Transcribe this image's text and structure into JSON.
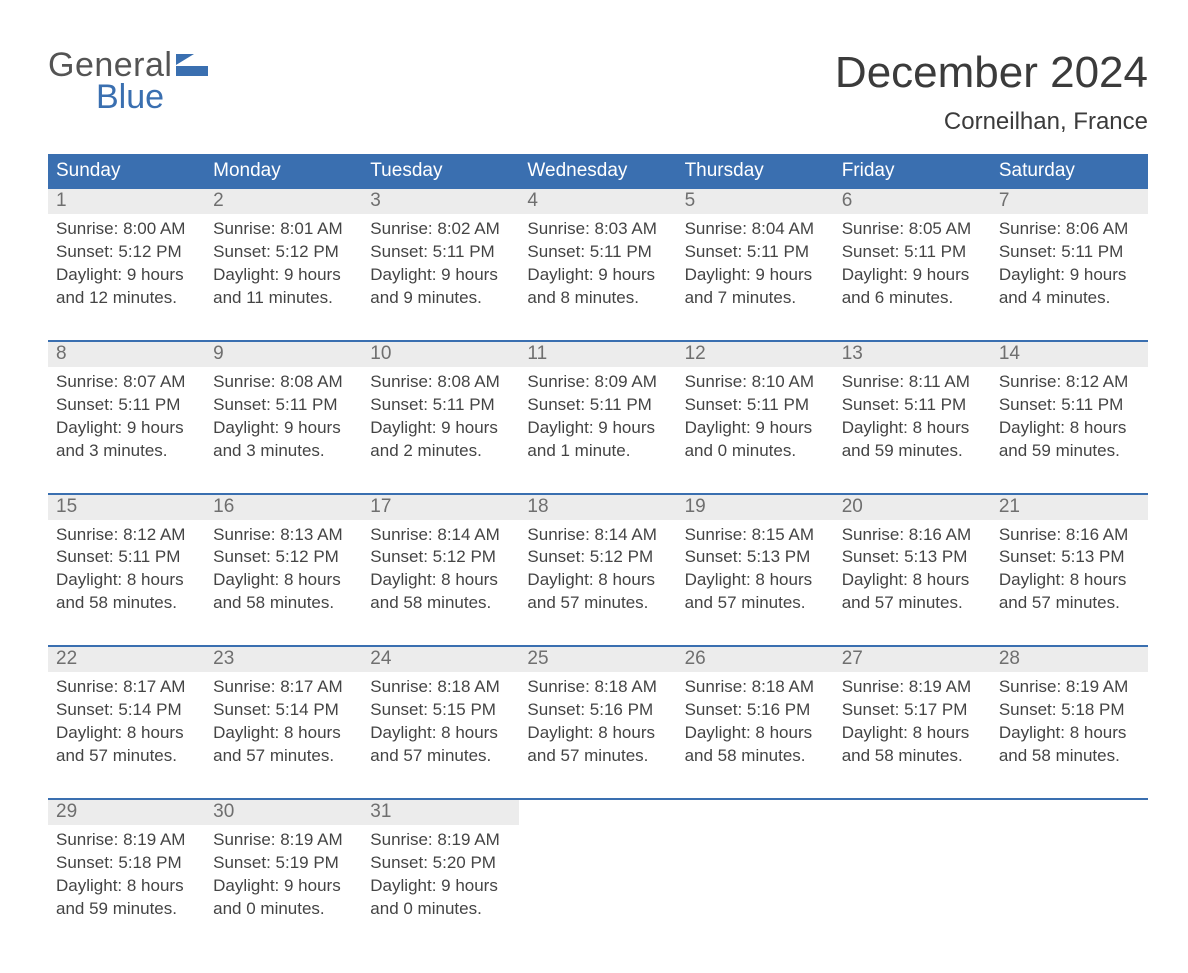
{
  "logo": {
    "text_top": "General",
    "text_bottom": "Blue"
  },
  "colors": {
    "brand_blue": "#3a6fb0",
    "header_row_bg": "#3a6fb0",
    "header_row_text": "#ffffff",
    "daynum_bg": "#ececec",
    "daynum_text": "#6f6f6f",
    "body_text": "#444444",
    "title_text": "#3b3b3b",
    "week_separator": "#3a6fb0",
    "background": "#ffffff",
    "logo_gray": "#545454"
  },
  "typography": {
    "month_title_fontsize": 44,
    "location_fontsize": 24,
    "dayname_fontsize": 19,
    "daynum_fontsize": 19,
    "detail_fontsize": 17,
    "logo_fontsize": 34
  },
  "title": "December 2024",
  "location": "Corneilhan, France",
  "day_names": [
    "Sunday",
    "Monday",
    "Tuesday",
    "Wednesday",
    "Thursday",
    "Friday",
    "Saturday"
  ],
  "weeks": [
    [
      {
        "n": "1",
        "sunrise": "Sunrise: 8:00 AM",
        "sunset": "Sunset: 5:12 PM",
        "d1": "Daylight: 9 hours",
        "d2": "and 12 minutes."
      },
      {
        "n": "2",
        "sunrise": "Sunrise: 8:01 AM",
        "sunset": "Sunset: 5:12 PM",
        "d1": "Daylight: 9 hours",
        "d2": "and 11 minutes."
      },
      {
        "n": "3",
        "sunrise": "Sunrise: 8:02 AM",
        "sunset": "Sunset: 5:11 PM",
        "d1": "Daylight: 9 hours",
        "d2": "and 9 minutes."
      },
      {
        "n": "4",
        "sunrise": "Sunrise: 8:03 AM",
        "sunset": "Sunset: 5:11 PM",
        "d1": "Daylight: 9 hours",
        "d2": "and 8 minutes."
      },
      {
        "n": "5",
        "sunrise": "Sunrise: 8:04 AM",
        "sunset": "Sunset: 5:11 PM",
        "d1": "Daylight: 9 hours",
        "d2": "and 7 minutes."
      },
      {
        "n": "6",
        "sunrise": "Sunrise: 8:05 AM",
        "sunset": "Sunset: 5:11 PM",
        "d1": "Daylight: 9 hours",
        "d2": "and 6 minutes."
      },
      {
        "n": "7",
        "sunrise": "Sunrise: 8:06 AM",
        "sunset": "Sunset: 5:11 PM",
        "d1": "Daylight: 9 hours",
        "d2": "and 4 minutes."
      }
    ],
    [
      {
        "n": "8",
        "sunrise": "Sunrise: 8:07 AM",
        "sunset": "Sunset: 5:11 PM",
        "d1": "Daylight: 9 hours",
        "d2": "and 3 minutes."
      },
      {
        "n": "9",
        "sunrise": "Sunrise: 8:08 AM",
        "sunset": "Sunset: 5:11 PM",
        "d1": "Daylight: 9 hours",
        "d2": "and 3 minutes."
      },
      {
        "n": "10",
        "sunrise": "Sunrise: 8:08 AM",
        "sunset": "Sunset: 5:11 PM",
        "d1": "Daylight: 9 hours",
        "d2": "and 2 minutes."
      },
      {
        "n": "11",
        "sunrise": "Sunrise: 8:09 AM",
        "sunset": "Sunset: 5:11 PM",
        "d1": "Daylight: 9 hours",
        "d2": "and 1 minute."
      },
      {
        "n": "12",
        "sunrise": "Sunrise: 8:10 AM",
        "sunset": "Sunset: 5:11 PM",
        "d1": "Daylight: 9 hours",
        "d2": "and 0 minutes."
      },
      {
        "n": "13",
        "sunrise": "Sunrise: 8:11 AM",
        "sunset": "Sunset: 5:11 PM",
        "d1": "Daylight: 8 hours",
        "d2": "and 59 minutes."
      },
      {
        "n": "14",
        "sunrise": "Sunrise: 8:12 AM",
        "sunset": "Sunset: 5:11 PM",
        "d1": "Daylight: 8 hours",
        "d2": "and 59 minutes."
      }
    ],
    [
      {
        "n": "15",
        "sunrise": "Sunrise: 8:12 AM",
        "sunset": "Sunset: 5:11 PM",
        "d1": "Daylight: 8 hours",
        "d2": "and 58 minutes."
      },
      {
        "n": "16",
        "sunrise": "Sunrise: 8:13 AM",
        "sunset": "Sunset: 5:12 PM",
        "d1": "Daylight: 8 hours",
        "d2": "and 58 minutes."
      },
      {
        "n": "17",
        "sunrise": "Sunrise: 8:14 AM",
        "sunset": "Sunset: 5:12 PM",
        "d1": "Daylight: 8 hours",
        "d2": "and 58 minutes."
      },
      {
        "n": "18",
        "sunrise": "Sunrise: 8:14 AM",
        "sunset": "Sunset: 5:12 PM",
        "d1": "Daylight: 8 hours",
        "d2": "and 57 minutes."
      },
      {
        "n": "19",
        "sunrise": "Sunrise: 8:15 AM",
        "sunset": "Sunset: 5:13 PM",
        "d1": "Daylight: 8 hours",
        "d2": "and 57 minutes."
      },
      {
        "n": "20",
        "sunrise": "Sunrise: 8:16 AM",
        "sunset": "Sunset: 5:13 PM",
        "d1": "Daylight: 8 hours",
        "d2": "and 57 minutes."
      },
      {
        "n": "21",
        "sunrise": "Sunrise: 8:16 AM",
        "sunset": "Sunset: 5:13 PM",
        "d1": "Daylight: 8 hours",
        "d2": "and 57 minutes."
      }
    ],
    [
      {
        "n": "22",
        "sunrise": "Sunrise: 8:17 AM",
        "sunset": "Sunset: 5:14 PM",
        "d1": "Daylight: 8 hours",
        "d2": "and 57 minutes."
      },
      {
        "n": "23",
        "sunrise": "Sunrise: 8:17 AM",
        "sunset": "Sunset: 5:14 PM",
        "d1": "Daylight: 8 hours",
        "d2": "and 57 minutes."
      },
      {
        "n": "24",
        "sunrise": "Sunrise: 8:18 AM",
        "sunset": "Sunset: 5:15 PM",
        "d1": "Daylight: 8 hours",
        "d2": "and 57 minutes."
      },
      {
        "n": "25",
        "sunrise": "Sunrise: 8:18 AM",
        "sunset": "Sunset: 5:16 PM",
        "d1": "Daylight: 8 hours",
        "d2": "and 57 minutes."
      },
      {
        "n": "26",
        "sunrise": "Sunrise: 8:18 AM",
        "sunset": "Sunset: 5:16 PM",
        "d1": "Daylight: 8 hours",
        "d2": "and 58 minutes."
      },
      {
        "n": "27",
        "sunrise": "Sunrise: 8:19 AM",
        "sunset": "Sunset: 5:17 PM",
        "d1": "Daylight: 8 hours",
        "d2": "and 58 minutes."
      },
      {
        "n": "28",
        "sunrise": "Sunrise: 8:19 AM",
        "sunset": "Sunset: 5:18 PM",
        "d1": "Daylight: 8 hours",
        "d2": "and 58 minutes."
      }
    ],
    [
      {
        "n": "29",
        "sunrise": "Sunrise: 8:19 AM",
        "sunset": "Sunset: 5:18 PM",
        "d1": "Daylight: 8 hours",
        "d2": "and 59 minutes."
      },
      {
        "n": "30",
        "sunrise": "Sunrise: 8:19 AM",
        "sunset": "Sunset: 5:19 PM",
        "d1": "Daylight: 9 hours",
        "d2": "and 0 minutes."
      },
      {
        "n": "31",
        "sunrise": "Sunrise: 8:19 AM",
        "sunset": "Sunset: 5:20 PM",
        "d1": "Daylight: 9 hours",
        "d2": "and 0 minutes."
      },
      null,
      null,
      null,
      null
    ]
  ]
}
